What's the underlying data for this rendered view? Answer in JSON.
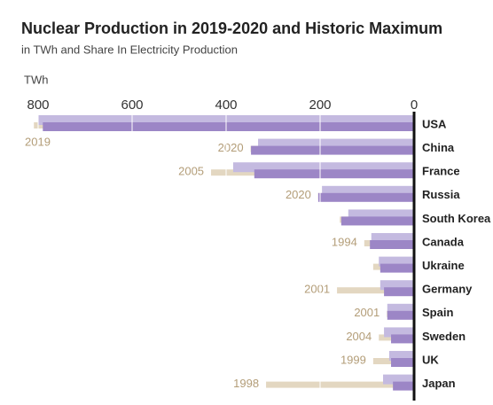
{
  "chart_data": {
    "type": "bar",
    "orientation": "horizontal",
    "title": "Nuclear Production in 2019-2020 and Historic Maximum",
    "subtitle": "in TWh and Share In Electricity Production",
    "x_label": "TWh",
    "categories": [
      "USA",
      "China",
      "France",
      "Russia",
      "South Korea",
      "Canada",
      "Ukraine",
      "Germany",
      "Spain",
      "Sweden",
      "UK",
      "Japan"
    ],
    "series": [
      {
        "color": "#e3d7c1",
        "values": [
          809,
          348,
          432,
          204,
          158,
          106,
          87,
          164,
          58,
          75,
          87,
          315
        ],
        "years": [
          "2019",
          "2020",
          "2005",
          "2020",
          null,
          "1994",
          null,
          "2001",
          "2001",
          "2004",
          "1999",
          "1998"
        ]
      },
      {
        "color": "#c4bae0",
        "values": [
          800,
          332,
          385,
          196,
          140,
          91,
          75,
          72,
          57,
          64,
          53,
          66
        ]
      },
      {
        "color": "#9c86c6",
        "values": [
          790,
          347,
          340,
          204,
          155,
          94,
          72,
          64,
          57,
          49,
          49,
          45
        ]
      }
    ],
    "xlim": [
      800,
      0
    ],
    "xticks": [
      800,
      600,
      400,
      200,
      0
    ],
    "grid": true,
    "year_color": "#b39d78"
  }
}
